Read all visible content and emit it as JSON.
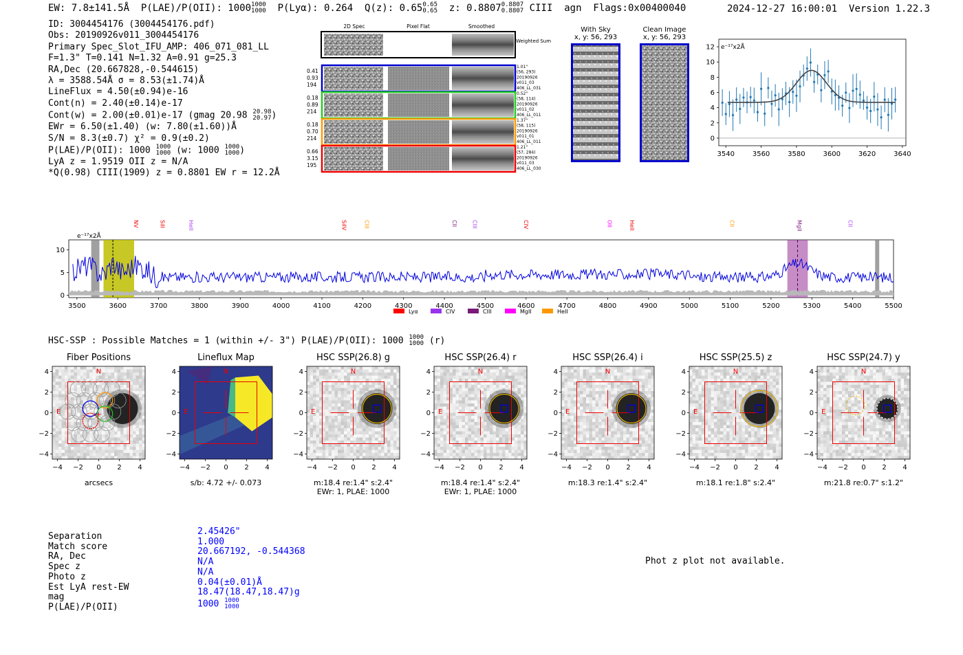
{
  "header": {
    "ew": "EW: 7.8±141.5Å",
    "plae": "P(LAE)/P(OII): 1000",
    "plae_hi": "1000",
    "plae_lo": "1000",
    "plya": "P(Lyα): 0.264",
    "qz": "Q(z): 0.65",
    "qz_hi": "0.65",
    "qz_lo": "0.65",
    "z": "z: 0.8807",
    "z_hi": "0.8807",
    "z_lo": "0.8807",
    "line": "CIII",
    "cls": "agn",
    "flags": "Flags:0x00400040",
    "datetime": "2024-12-27 16:00:01",
    "version": "Version 1.22.3"
  },
  "info": {
    "id": "ID: 3004454176 (3004454176.pdf)",
    "obs": "Obs: 20190926v011_3004454176",
    "primary": "Primary Spec_Slot_IFU_AMP: 406_071_081_LL",
    "params": "F=1.3\"  T=0.141  N=1.32  A=0.91  g=25.3",
    "radec": "RA,Dec (20.667828,-0.544615)",
    "lambda": "λ = 3588.54Å  σ = 8.53(±1.74)Å",
    "lineflux": "LineFlux = 4.50(±0.94)e-16",
    "contn": "Cont(n) = 2.40(±0.14)e-17",
    "contw": "Cont(w) = 2.00(±0.01)e-17 (gmag 20.98",
    "contw_hi": "20.98",
    "contw_lo": "20.97",
    "contw_end": ")",
    "ewr": "EWr = 6.50(±1.40) (w: 7.80(±1.60))Å",
    "sn": "S/N = 8.3(±0.7)  χ² = 0.9(±0.2)",
    "plae": "P(LAE)/P(OII): 1000",
    "plae_hi": "1000",
    "plae_lo": "1000",
    "plae_w": "(w: 1000",
    "plae_w_hi": "1000",
    "plae_w_lo": "1000",
    "plae_end": ")",
    "lya": "LyA z = 1.9519  OII z = N/A",
    "q": "*Q(0.98) CIII(1909) z = 0.8801  EW r = 12.2Å"
  },
  "cutouts": {
    "col_2d": "2D Spec",
    "col_flat": "Pixel Flat",
    "col_smooth": "Smoothed",
    "weighted": "Weighted Sum",
    "rows": [
      {
        "w": [
          "0.41",
          "0.93",
          "194"
        ],
        "r": [
          "1.01\"",
          "(56, 293)",
          "20190926",
          "v011_03",
          "406_LL_031"
        ],
        "color": "#0000cc"
      },
      {
        "w": [
          "0.18",
          "0.89",
          "214"
        ],
        "r": [
          "0.52\"",
          "(58, 114)",
          "20190926",
          "v011_02",
          "406_LL_011"
        ],
        "color": "#22cc22"
      },
      {
        "w": [
          "0.18",
          "0.70",
          "214"
        ],
        "r": [
          "1.37\"",
          "(58, 115)",
          "20190926",
          "v011_01",
          "406_LL_011"
        ],
        "color": "#ff9900"
      },
      {
        "w": [
          "0.66",
          "3.15",
          "195"
        ],
        "r": [
          "1.21\"",
          "(57, 284)",
          "20190926",
          "v011_03",
          "406_LL_030"
        ],
        "color": "#ee0000"
      }
    ]
  },
  "sky": {
    "with_sky": "With Sky",
    "with_sky_xy": "x, y: 56, 293",
    "clean": "Clean Image",
    "clean_xy": "x, y: 56, 293"
  },
  "fit_plot": {
    "unit": "e⁻¹⁷x2Å",
    "yticks": [
      "0",
      "2",
      "4",
      "6",
      "8",
      "10",
      "12"
    ],
    "xticks": [
      "3540",
      "3560",
      "3580",
      "3600",
      "3620",
      "3640"
    ]
  },
  "spectrum": {
    "unit": "e⁻¹⁷x2Å",
    "yticks": [
      "0",
      "5",
      "10"
    ],
    "xticks": [
      "3500",
      "3600",
      "3700",
      "3800",
      "3900",
      "4000",
      "4100",
      "4200",
      "4300",
      "4400",
      "4500",
      "4600",
      "4700",
      "4800",
      "4900",
      "5000",
      "5100",
      "5200",
      "5300",
      "5400",
      "5500"
    ],
    "lines": [
      {
        "name": "NV",
        "color": "#ee0000"
      },
      {
        "name": "SiII",
        "color": "#ee0000"
      },
      {
        "name": "HeII",
        "color": "#aa44ee"
      },
      {
        "name": "SiIV",
        "color": "#ee0000"
      },
      {
        "name": "CIII",
        "color": "#ff9900"
      },
      {
        "name": "CII",
        "color": "#7a1a7a"
      },
      {
        "name": "CIII",
        "color": "#aa44ee"
      },
      {
        "name": "CIV",
        "color": "#ee0000"
      },
      {
        "name": "OII",
        "color": "#ff00ff"
      },
      {
        "name": "HeII",
        "color": "#ee0000"
      },
      {
        "name": "CII",
        "color": "#ff9900"
      },
      {
        "name": "MgII",
        "color": "#7a1a7a"
      },
      {
        "name": "CII",
        "color": "#aa44ee"
      }
    ],
    "legend": [
      {
        "name": "Lyα",
        "color": "#ff0000"
      },
      {
        "name": "CIV",
        "color": "#9933ee"
      },
      {
        "name": "CIII",
        "color": "#7a1a7a"
      },
      {
        "name": "MgII",
        "color": "#ff00ff"
      },
      {
        "name": "HeII",
        "color": "#ff9900"
      }
    ]
  },
  "hsc": {
    "title": "HSC-SSP : Possible Matches = 1 (within +/- 3\")  P(LAE)/P(OII): 1000",
    "title_hi": "1000",
    "title_lo": "1000",
    "title_end": "(r)",
    "panels": [
      {
        "title": "Fiber Positions",
        "cap1": "arcsecs",
        "cap2": ""
      },
      {
        "title": "Lineflux Map",
        "cap1": "s/b: 4.72 +/- 0.073",
        "cap2": ""
      },
      {
        "title": "HSC SSP(26.8) g",
        "cap1": "m:18.4  re:1.4\"  s:2.4\"",
        "cap2": "EWr: 1, PLAE: 1000"
      },
      {
        "title": "HSC SSP(26.4) r",
        "cap1": "m:18.4  re:1.4\"  s:2.4\"",
        "cap2": "EWr: 1, PLAE: 1000"
      },
      {
        "title": "HSC SSP(26.4) i",
        "cap1": "m:18.3  re:1.4\"  s:2.4\"",
        "cap2": ""
      },
      {
        "title": "HSC SSP(25.5) z",
        "cap1": "m:18.1  re:1.8\"  s:2.4\"",
        "cap2": ""
      },
      {
        "title": "HSC SSP(24.7) y",
        "cap1": "m:21.8  re:0.7\"  s:1.2\"",
        "cap2": ""
      }
    ],
    "yticks": [
      "4",
      "2",
      "0",
      "−2",
      "−4"
    ],
    "xticks": [
      "−4",
      "−2",
      "0",
      "2",
      "4"
    ],
    "n": "N",
    "e": "E"
  },
  "bottom": {
    "labels": [
      "Separation",
      "Match score",
      "RA, Dec",
      "Spec z",
      "Photo z",
      "Est LyA rest-EW",
      "mag",
      "P(LAE)/P(OII)"
    ],
    "values": [
      "2.45426\"",
      "1.000",
      "20.667192, -0.544368",
      "N/A",
      "N/A",
      "0.04(±0.01)Å",
      "18.47(18.47,18.47)g",
      "1000"
    ],
    "plae_hi": "1000",
    "plae_lo": "1000",
    "photz_msg": "Phot z plot not available."
  }
}
